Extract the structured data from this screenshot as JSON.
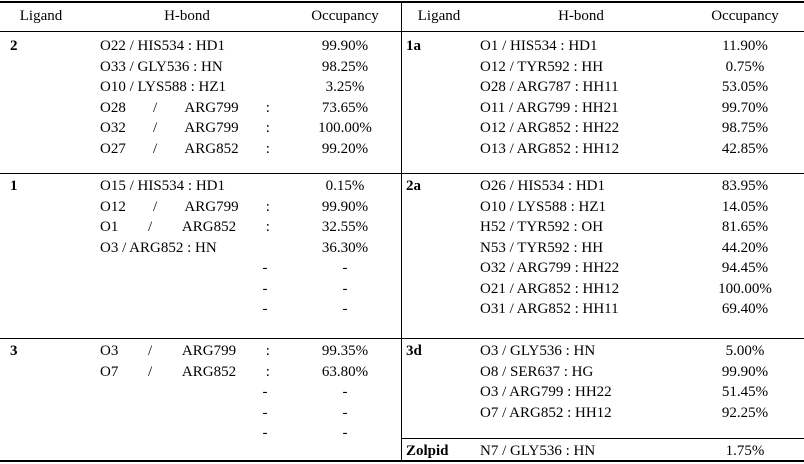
{
  "headers": {
    "left": [
      "Ligand",
      "H-bond",
      "Occupancy"
    ],
    "right": [
      "Ligand",
      "H-bond",
      "Occupancy"
    ]
  },
  "left_groups": [
    {
      "ligand": "2",
      "rows": [
        {
          "hbond": "O22 / HIS534 : HD1",
          "occ": "99.90%"
        },
        {
          "hbond": "O33 / GLY536 : HN",
          "occ": "98.25%"
        },
        {
          "hbond": "O10 / LYS588 : HZ1",
          "occ": "3.25%"
        },
        {
          "hbond": "O28 / ARG799 :",
          "occ": "73.65%",
          "justify": true
        },
        {
          "hbond": "O32 / ARG799 :",
          "occ": "100.00%",
          "justify": true
        },
        {
          "hbond": "O27 / ARG852 :",
          "occ": "99.20%",
          "justify": true
        }
      ]
    },
    {
      "ligand": "1",
      "rows": [
        {
          "hbond": "O15 / HIS534 : HD1",
          "occ": "0.15%"
        },
        {
          "hbond": "O12 / ARG799 :",
          "occ": "99.90%",
          "justify": true
        },
        {
          "hbond": "O1 / ARG852 :",
          "occ": "32.55%",
          "justify": true
        },
        {
          "hbond": "O3 / ARG852 : HN",
          "occ": "36.30%"
        },
        {
          "hbond": "-",
          "occ": "-",
          "center": true
        },
        {
          "hbond": "-",
          "occ": "-",
          "center": true
        },
        {
          "hbond": "-",
          "occ": "-",
          "center": true
        }
      ]
    },
    {
      "ligand": "3",
      "rows": [
        {
          "hbond": "O3 / ARG799 :",
          "occ": "99.35%",
          "justify": true
        },
        {
          "hbond": "O7 / ARG852 :",
          "occ": "63.80%",
          "justify": true
        },
        {
          "hbond": "-",
          "occ": "-",
          "center": true
        },
        {
          "hbond": "-",
          "occ": "-",
          "center": true
        },
        {
          "hbond": "-",
          "occ": "-",
          "center": true
        }
      ]
    }
  ],
  "right_groups": [
    {
      "ligand": "1a",
      "rows": [
        {
          "hbond": "O1 / HIS534 : HD1",
          "occ": "11.90%"
        },
        {
          "hbond": "O12 / TYR592 : HH",
          "occ": "0.75%"
        },
        {
          "hbond": "O28 / ARG787 : HH11",
          "occ": "53.05%"
        },
        {
          "hbond": "O11 / ARG799 : HH21",
          "occ": "99.70%"
        },
        {
          "hbond": "O12 / ARG852 : HH22",
          "occ": "98.75%"
        },
        {
          "hbond": "O13 / ARG852 : HH12",
          "occ": "42.85%"
        }
      ]
    },
    {
      "ligand": "2a",
      "rows": [
        {
          "hbond": "O26 / HIS534 : HD1",
          "occ": "83.95%"
        },
        {
          "hbond": "O10 / LYS588 : HZ1",
          "occ": "14.05%"
        },
        {
          "hbond": "H52 / TYR592 : OH",
          "occ": "81.65%"
        },
        {
          "hbond": "N53 / TYR592 : HH",
          "occ": "44.20%"
        },
        {
          "hbond": "O32 / ARG799 : HH22",
          "occ": "94.45%"
        },
        {
          "hbond": "O21 / ARG852 : HH12",
          "occ": "100.00%"
        },
        {
          "hbond": "O31 / ARG852 : HH11",
          "occ": "69.40%"
        }
      ]
    },
    {
      "ligand": "3d",
      "rows": [
        {
          "hbond": "O3 / GLY536 : HN",
          "occ": "5.00%"
        },
        {
          "hbond": "O8 / SER637 : HG",
          "occ": "99.90%"
        },
        {
          "hbond": "O3 / ARG799 : HH22",
          "occ": "51.45%"
        },
        {
          "hbond": "O7 / ARG852 : HH12",
          "occ": "92.25%"
        }
      ]
    },
    {
      "ligand": "Zolpid",
      "rows": [
        {
          "hbond": "N7 / GLY536 : HN",
          "occ": "1.75%"
        }
      ]
    }
  ]
}
